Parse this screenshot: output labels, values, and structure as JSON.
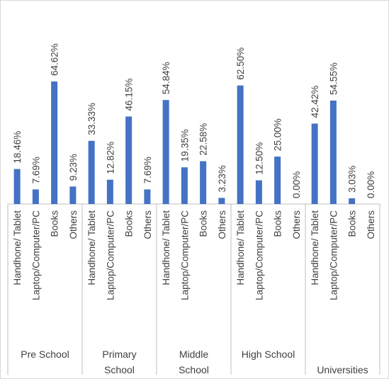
{
  "chart_data": {
    "type": "bar",
    "title": "",
    "xlabel": "",
    "ylabel": "",
    "ylim": [
      0,
      70
    ],
    "grid": false,
    "legend": "none",
    "groups": [
      {
        "label": "Pre School",
        "categories": [
          "Handhone/ Tablet",
          "Laptop/Computer/PC",
          "Books",
          "Others"
        ],
        "values": [
          18.46,
          7.69,
          64.62,
          9.23
        ],
        "value_labels": [
          "18.46%",
          "7.69%",
          "64.62%",
          "9.23%"
        ]
      },
      {
        "label": "Primary School",
        "categories": [
          "Handhone/ Tablet",
          "Laptop/Computer/PC",
          "Books",
          "Others"
        ],
        "values": [
          33.33,
          12.82,
          46.15,
          7.69
        ],
        "value_labels": [
          "33.33%",
          "12.82%",
          "46.15%",
          "7.69%"
        ]
      },
      {
        "label": "Middle School",
        "categories": [
          "Handhone/ Tablet",
          "Laptop/Computer/PC",
          "Books",
          "Others"
        ],
        "values": [
          54.84,
          19.35,
          22.58,
          3.23
        ],
        "value_labels": [
          "54.84%",
          "19.35%",
          "22.58%",
          "3.23%"
        ]
      },
      {
        "label": "High School",
        "categories": [
          "Handhone/ Tablet",
          "Laptop/Computer/PC",
          "Books",
          "Others"
        ],
        "values": [
          62.5,
          12.5,
          25.0,
          0.0
        ],
        "value_labels": [
          "62.50%",
          "12.50%",
          "25.00%",
          "0.00%"
        ]
      },
      {
        "label": "Universities",
        "categories": [
          "Handhone/ Tablet",
          "Laptop/Computer/PC",
          "Books",
          "Others"
        ],
        "values": [
          42.42,
          54.55,
          3.03,
          0.0
        ],
        "value_labels": [
          "42.42%",
          "54.55%",
          "3.03%",
          "0.00%"
        ]
      }
    ],
    "colors": {
      "bar": "#4472c4",
      "axis": "#bfbfbf",
      "text": "#404040"
    }
  }
}
